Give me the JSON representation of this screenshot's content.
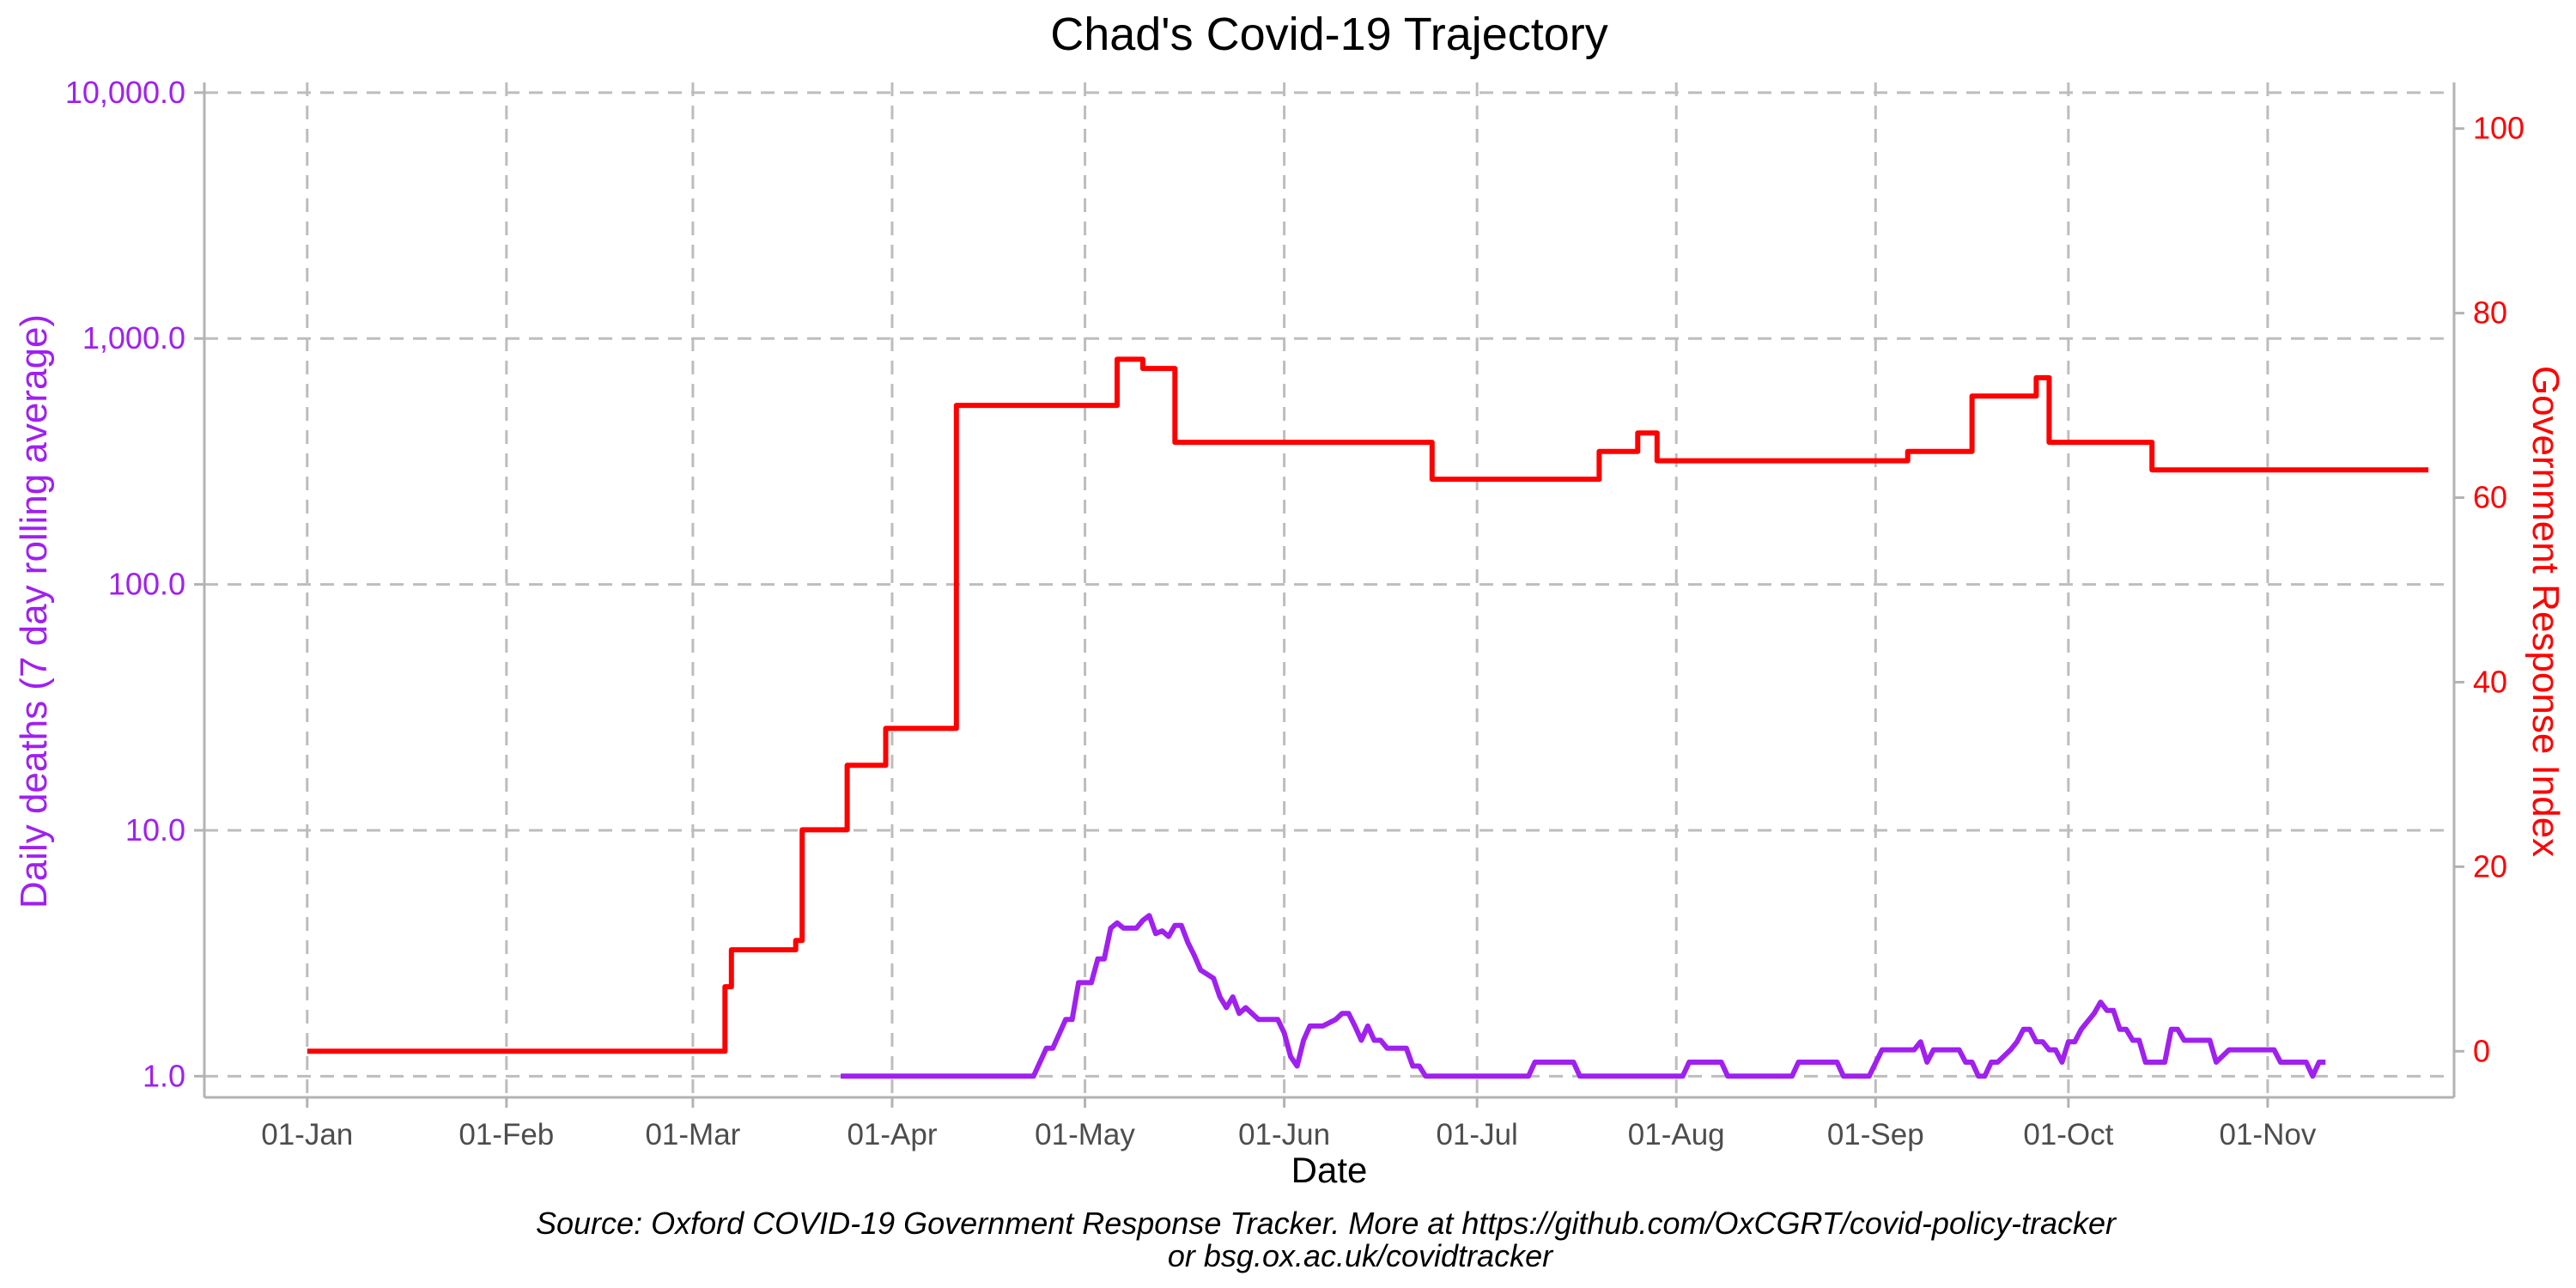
{
  "chart_data": {
    "type": "line",
    "title": "Chad's Covid-19 Trajectory",
    "xlabel": "Date",
    "ylabel_left": "Daily deaths (7 day rolling average)",
    "ylabel_right": "Government Response Index",
    "caption_line1": "Source: Oxford COVID-19 Government Response Tracker. More at https://github.com/OxCGRT/covid-policy-tracker",
    "caption_line2": "or bsg.ox.ac.uk/covidtracker",
    "x_ticks": [
      {
        "date": "2020-01-01",
        "label": "01-Jan"
      },
      {
        "date": "2020-02-01",
        "label": "01-Feb"
      },
      {
        "date": "2020-03-01",
        "label": "01-Mar"
      },
      {
        "date": "2020-04-01",
        "label": "01-Apr"
      },
      {
        "date": "2020-05-01",
        "label": "01-May"
      },
      {
        "date": "2020-06-01",
        "label": "01-Jun"
      },
      {
        "date": "2020-07-01",
        "label": "01-Jul"
      },
      {
        "date": "2020-08-01",
        "label": "01-Aug"
      },
      {
        "date": "2020-09-01",
        "label": "01-Sep"
      },
      {
        "date": "2020-10-01",
        "label": "01-Oct"
      },
      {
        "date": "2020-11-01",
        "label": "01-Nov"
      }
    ],
    "xlim": [
      "2019-12-16",
      "2020-11-30"
    ],
    "y_left": {
      "scale": "log10",
      "lim": [
        0.82,
        11000
      ],
      "ticks": [
        {
          "value": 1,
          "label": "1.0"
        },
        {
          "value": 10,
          "label": "10.0"
        },
        {
          "value": 100,
          "label": "100.0"
        },
        {
          "value": 1000,
          "label": "1,000.0"
        },
        {
          "value": 10000,
          "label": "10,000.0"
        }
      ]
    },
    "y_right": {
      "scale": "linear",
      "lim": [
        -5,
        105
      ],
      "ticks": [
        {
          "value": 0,
          "label": "0"
        },
        {
          "value": 20,
          "label": "20"
        },
        {
          "value": 40,
          "label": "40"
        },
        {
          "value": 60,
          "label": "60"
        },
        {
          "value": 80,
          "label": "80"
        },
        {
          "value": 100,
          "label": "100"
        }
      ]
    },
    "grid": true,
    "series": [
      {
        "name": "Government Response Index",
        "axis": "right",
        "color": "#ff0000",
        "step": true,
        "points": [
          [
            "2020-01-01",
            0
          ],
          [
            "2020-03-06",
            7
          ],
          [
            "2020-03-07",
            11
          ],
          [
            "2020-03-17",
            12
          ],
          [
            "2020-03-18",
            24
          ],
          [
            "2020-03-25",
            31
          ],
          [
            "2020-03-31",
            35
          ],
          [
            "2020-04-11",
            70
          ],
          [
            "2020-05-06",
            75
          ],
          [
            "2020-05-10",
            74
          ],
          [
            "2020-05-15",
            66
          ],
          [
            "2020-06-24",
            62
          ],
          [
            "2020-07-20",
            65
          ],
          [
            "2020-07-26",
            67
          ],
          [
            "2020-07-29",
            64
          ],
          [
            "2020-09-06",
            65
          ],
          [
            "2020-09-16",
            71
          ],
          [
            "2020-09-26",
            73
          ],
          [
            "2020-09-28",
            66
          ],
          [
            "2020-10-14",
            63
          ],
          [
            "2020-11-26",
            63
          ]
        ]
      },
      {
        "name": "Daily deaths (7 day rolling average)",
        "axis": "left",
        "color": "#a020f0",
        "step": false,
        "points": [
          [
            "2020-03-24",
            1.0
          ],
          [
            "2020-04-23",
            1.0
          ],
          [
            "2020-04-25",
            1.3
          ],
          [
            "2020-04-26",
            1.3
          ],
          [
            "2020-04-28",
            1.7
          ],
          [
            "2020-04-29",
            1.7
          ],
          [
            "2020-04-30",
            2.4
          ],
          [
            "2020-05-02",
            2.4
          ],
          [
            "2020-05-03",
            3.0
          ],
          [
            "2020-05-04",
            3.0
          ],
          [
            "2020-05-05",
            4.0
          ],
          [
            "2020-05-06",
            4.2
          ],
          [
            "2020-05-07",
            4.0
          ],
          [
            "2020-05-09",
            4.0
          ],
          [
            "2020-05-10",
            4.3
          ],
          [
            "2020-05-11",
            4.5
          ],
          [
            "2020-05-12",
            3.8
          ],
          [
            "2020-05-13",
            3.9
          ],
          [
            "2020-05-14",
            3.7
          ],
          [
            "2020-05-15",
            4.1
          ],
          [
            "2020-05-16",
            4.1
          ],
          [
            "2020-05-17",
            3.5
          ],
          [
            "2020-05-18",
            3.1
          ],
          [
            "2020-05-19",
            2.7
          ],
          [
            "2020-05-21",
            2.5
          ],
          [
            "2020-05-22",
            2.1
          ],
          [
            "2020-05-23",
            1.9
          ],
          [
            "2020-05-24",
            2.1
          ],
          [
            "2020-05-25",
            1.8
          ],
          [
            "2020-05-26",
            1.9
          ],
          [
            "2020-05-28",
            1.7
          ],
          [
            "2020-05-31",
            1.7
          ],
          [
            "2020-06-01",
            1.5
          ],
          [
            "2020-06-02",
            1.2
          ],
          [
            "2020-06-03",
            1.1
          ],
          [
            "2020-06-04",
            1.4
          ],
          [
            "2020-06-05",
            1.6
          ],
          [
            "2020-06-07",
            1.6
          ],
          [
            "2020-06-09",
            1.7
          ],
          [
            "2020-06-10",
            1.8
          ],
          [
            "2020-06-11",
            1.8
          ],
          [
            "2020-06-12",
            1.6
          ],
          [
            "2020-06-13",
            1.4
          ],
          [
            "2020-06-14",
            1.6
          ],
          [
            "2020-06-15",
            1.4
          ],
          [
            "2020-06-16",
            1.4
          ],
          [
            "2020-06-17",
            1.3
          ],
          [
            "2020-06-20",
            1.3
          ],
          [
            "2020-06-21",
            1.1
          ],
          [
            "2020-06-22",
            1.1
          ],
          [
            "2020-06-23",
            1.0
          ],
          [
            "2020-07-09",
            1.0
          ],
          [
            "2020-07-10",
            1.14
          ],
          [
            "2020-07-16",
            1.14
          ],
          [
            "2020-07-17",
            1.0
          ],
          [
            "2020-08-02",
            1.0
          ],
          [
            "2020-08-03",
            1.14
          ],
          [
            "2020-08-08",
            1.14
          ],
          [
            "2020-08-09",
            1.0
          ],
          [
            "2020-08-19",
            1.0
          ],
          [
            "2020-08-20",
            1.14
          ],
          [
            "2020-08-26",
            1.14
          ],
          [
            "2020-08-27",
            1.0
          ],
          [
            "2020-08-30",
            1.0
          ],
          [
            "2020-08-31",
            1.0
          ],
          [
            "2020-09-02",
            1.28
          ],
          [
            "2020-09-07",
            1.28
          ],
          [
            "2020-09-08",
            1.38
          ],
          [
            "2020-09-09",
            1.14
          ],
          [
            "2020-09-10",
            1.28
          ],
          [
            "2020-09-14",
            1.28
          ],
          [
            "2020-09-15",
            1.14
          ],
          [
            "2020-09-16",
            1.14
          ],
          [
            "2020-09-17",
            1.0
          ],
          [
            "2020-09-18",
            1.0
          ],
          [
            "2020-09-19",
            1.14
          ],
          [
            "2020-09-20",
            1.14
          ],
          [
            "2020-09-22",
            1.28
          ],
          [
            "2020-09-23",
            1.38
          ],
          [
            "2020-09-24",
            1.55
          ],
          [
            "2020-09-25",
            1.55
          ],
          [
            "2020-09-26",
            1.38
          ],
          [
            "2020-09-27",
            1.38
          ],
          [
            "2020-09-28",
            1.28
          ],
          [
            "2020-09-29",
            1.28
          ],
          [
            "2020-09-30",
            1.14
          ],
          [
            "2020-10-01",
            1.38
          ],
          [
            "2020-10-02",
            1.38
          ],
          [
            "2020-10-03",
            1.55
          ],
          [
            "2020-10-05",
            1.8
          ],
          [
            "2020-10-06",
            2.0
          ],
          [
            "2020-10-07",
            1.85
          ],
          [
            "2020-10-08",
            1.85
          ],
          [
            "2020-10-09",
            1.55
          ],
          [
            "2020-10-10",
            1.55
          ],
          [
            "2020-10-11",
            1.4
          ],
          [
            "2020-10-12",
            1.4
          ],
          [
            "2020-10-13",
            1.14
          ],
          [
            "2020-10-16",
            1.14
          ],
          [
            "2020-10-17",
            1.55
          ],
          [
            "2020-10-18",
            1.55
          ],
          [
            "2020-10-19",
            1.4
          ],
          [
            "2020-10-23",
            1.4
          ],
          [
            "2020-10-24",
            1.14
          ],
          [
            "2020-10-26",
            1.28
          ],
          [
            "2020-10-31",
            1.28
          ],
          [
            "2020-11-02",
            1.28
          ],
          [
            "2020-11-03",
            1.14
          ],
          [
            "2020-11-07",
            1.14
          ],
          [
            "2020-11-08",
            1.0
          ],
          [
            "2020-11-09",
            1.14
          ],
          [
            "2020-11-10",
            1.14
          ]
        ]
      }
    ]
  },
  "colors": {
    "deaths": "#a020f0",
    "response_index": "#ff0000",
    "grid": "#bdbdbd",
    "axis_line": "#b3b3b3"
  }
}
